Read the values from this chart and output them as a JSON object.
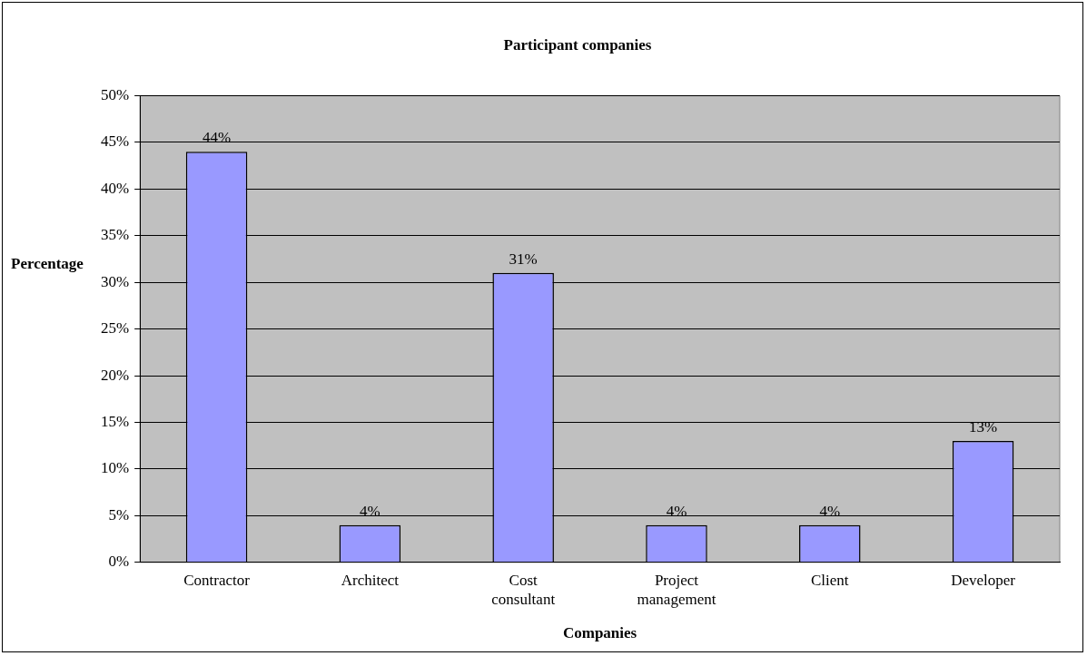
{
  "chart_data": {
    "type": "bar",
    "title": "Participant companies",
    "xlabel": "Companies",
    "ylabel": "Percentage",
    "categories": [
      "Contractor",
      "Architect",
      "Cost consultant",
      "Project management",
      "Client",
      "Developer"
    ],
    "values": [
      44,
      4,
      31,
      4,
      4,
      13
    ],
    "value_labels": [
      "44%",
      "4%",
      "31%",
      "4%",
      "4%",
      "13%"
    ],
    "color": "#9999ff",
    "ylim": [
      0,
      50
    ],
    "yticks": [
      {
        "value": 0,
        "label": "0%"
      },
      {
        "value": 5,
        "label": "5%"
      },
      {
        "value": 10,
        "label": "10%"
      },
      {
        "value": 15,
        "label": "15%"
      },
      {
        "value": 20,
        "label": "20%"
      },
      {
        "value": 25,
        "label": "25%"
      },
      {
        "value": 30,
        "label": "30%"
      },
      {
        "value": 35,
        "label": "35%"
      },
      {
        "value": 40,
        "label": "40%"
      },
      {
        "value": 45,
        "label": "45%"
      },
      {
        "value": 50,
        "label": "50%"
      }
    ],
    "grid": "y",
    "legend": false
  }
}
